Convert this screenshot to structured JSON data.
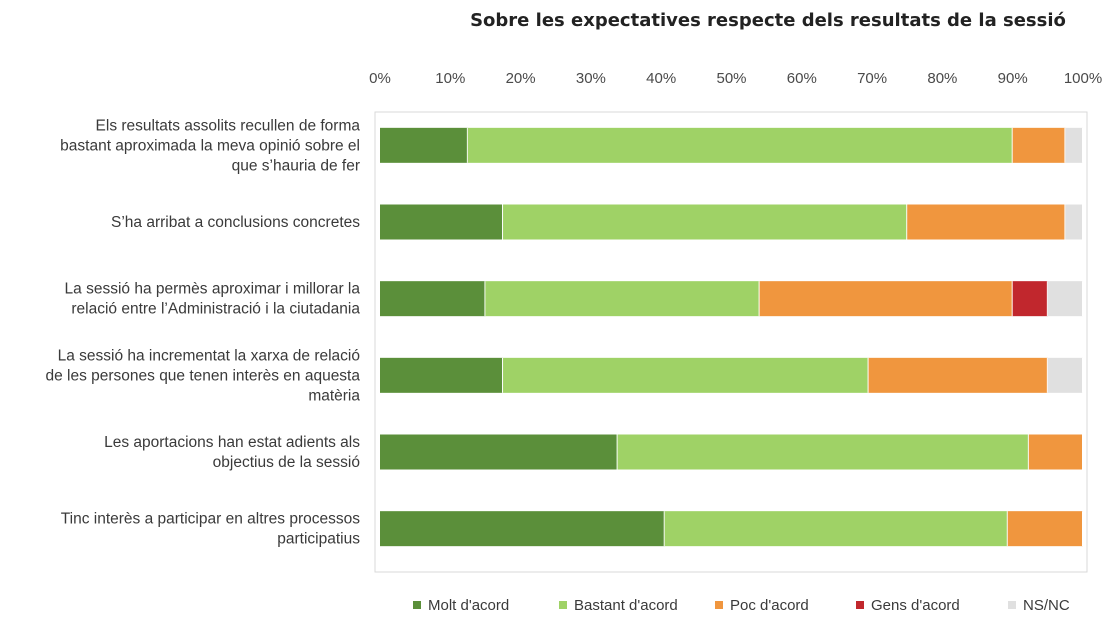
{
  "chart_data": {
    "type": "bar",
    "stacked": true,
    "orientation": "horizontal",
    "title": "Sobre les expectatives respecte dels resultats de la sessió",
    "xlim": [
      0,
      100
    ],
    "x_ticks": [
      "0%",
      "10%",
      "20%",
      "30%",
      "40%",
      "50%",
      "60%",
      "70%",
      "80%",
      "90%",
      "100%"
    ],
    "legend_position": "bottom",
    "grid": false,
    "categories": [
      [
        "Els resultats assolits recullen de forma",
        "bastant aproximada la meva opinió sobre el",
        "que s’hauria de fer"
      ],
      [
        "S’ha arribat a conclusions concretes"
      ],
      [
        "La sessió ha permès aproximar i millorar la",
        "relació entre l’Administració i la ciutadania"
      ],
      [
        "La sessió ha incrementat la xarxa de relació",
        "de les persones que tenen interès en aquesta",
        "matèria"
      ],
      [
        "Les aportacions han estat adients als",
        "objectius de la sessió"
      ],
      [
        "Tinc interès a participar en altres processos",
        "participatius"
      ]
    ],
    "series": [
      {
        "name": "Molt d'acord",
        "color": "#5b8f3a",
        "values": [
          12.5,
          17.5,
          15,
          17.5,
          33.8,
          40.5
        ]
      },
      {
        "name": "Bastant d'acord",
        "color": "#9fd266",
        "values": [
          77.5,
          57.5,
          39,
          52,
          58.5,
          48.8
        ]
      },
      {
        "name": "Poc d'acord",
        "color": "#f0963e",
        "values": [
          7.5,
          22.5,
          36,
          25.5,
          7.7,
          10.7
        ]
      },
      {
        "name": "Gens d'acord",
        "color": "#c1272d",
        "values": [
          0,
          0,
          5,
          0,
          0,
          0
        ]
      },
      {
        "name": "NS/NC",
        "color": "#e0e0e0",
        "values": [
          2.5,
          2.5,
          5,
          5,
          0,
          0
        ]
      }
    ]
  }
}
